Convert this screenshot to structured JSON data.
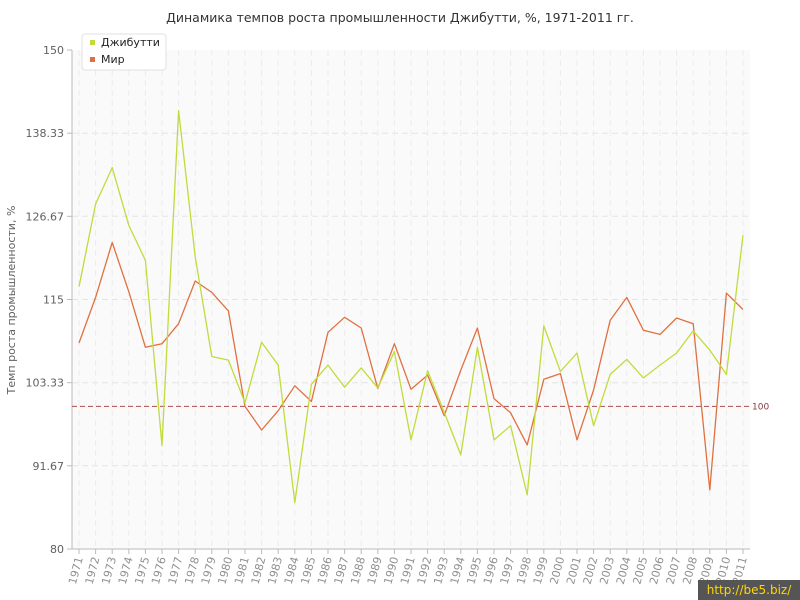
{
  "chart_data": {
    "type": "line",
    "title": "Динамика темпов роста промышленности Джибутти, %, 1971-2011 гг.",
    "ylabel": "Темп роста промышленности, %",
    "xlabel": "",
    "ylim": [
      80,
      150
    ],
    "yticks": [
      "80",
      "91.67",
      "103.33",
      "115",
      "126.67",
      "138.33",
      "150"
    ],
    "grid": true,
    "legend_position": "top-left",
    "reference_line": {
      "value": 100,
      "label": "100",
      "color": "#b04a4a"
    },
    "x": [
      "1971",
      "1972",
      "1973",
      "1974",
      "1975",
      "1976",
      "1977",
      "1978",
      "1979",
      "1980",
      "1981",
      "1982",
      "1983",
      "1984",
      "1985",
      "1986",
      "1987",
      "1988",
      "1989",
      "1990",
      "1991",
      "1992",
      "1993",
      "1994",
      "1995",
      "1996",
      "1997",
      "1998",
      "1999",
      "2000",
      "2001",
      "2002",
      "2003",
      "2004",
      "2005",
      "2006",
      "2007",
      "2008",
      "2009",
      "2010",
      "2011"
    ],
    "series": [
      {
        "name": "Джибутти",
        "color": "#c0dc3c",
        "values": [
          116.8,
          128.4,
          133.5,
          125.4,
          120.5,
          94.5,
          141.5,
          121.0,
          107.0,
          106.5,
          100.5,
          109.0,
          105.8,
          86.5,
          103.1,
          105.8,
          102.7,
          105.4,
          102.6,
          107.7,
          95.3,
          105.0,
          99.2,
          93.2,
          108.3,
          95.3,
          97.3,
          87.6,
          111.3,
          104.9,
          107.5,
          97.3,
          104.5,
          106.6,
          104.0,
          105.8,
          107.5,
          110.6,
          107.9,
          104.5,
          124.0
        ]
      },
      {
        "name": "Мир",
        "color": "#e07040",
        "values": [
          108.9,
          115.3,
          123.0,
          116.1,
          108.3,
          108.8,
          111.6,
          117.6,
          116.0,
          113.4,
          100.0,
          96.7,
          99.4,
          102.9,
          100.7,
          110.4,
          112.5,
          111.0,
          102.5,
          108.8,
          102.4,
          104.4,
          98.7,
          105.1,
          111.0,
          101.1,
          99.1,
          94.6,
          103.8,
          104.6,
          95.3,
          102.3,
          112.1,
          115.3,
          110.7,
          110.1,
          112.4,
          111.6,
          88.3,
          115.9,
          113.6
        ]
      }
    ]
  },
  "watermark": "http://be5.biz/"
}
